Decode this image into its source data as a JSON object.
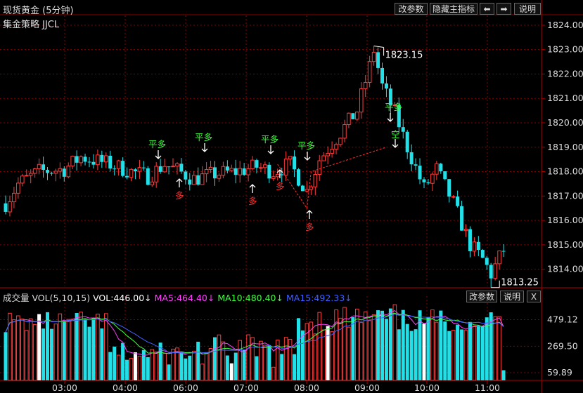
{
  "header": {
    "title": "现货黄金 (5分钟)",
    "subtitle": "集金策略 JJCL",
    "buttons": {
      "params": "改参数",
      "hide": "隐藏主指标",
      "left": "⬅",
      "right": "➡",
      "help": "说明"
    }
  },
  "volume_panel": {
    "label": "成交量 VOL(5,10,15)",
    "vol": "VOL:446.00↓",
    "ma5": "MA5:464.40↓",
    "ma10": "MA10:480.40↓",
    "ma15": "MA15:492.33↓",
    "buttons": {
      "params": "改参数",
      "help": "说明",
      "close": "X"
    }
  },
  "colors": {
    "up": "#ff3b3b",
    "down": "#22e0e8",
    "white": "#ffffff",
    "ma5": "#ff40ff",
    "ma10": "#40ff40",
    "ma15": "#4060ff",
    "grid": "#8a0000",
    "signal_green": "#3cff3c",
    "signal_red": "#ff3030"
  },
  "chart_data": {
    "type": "candlestick",
    "price_ticks": [
      "1824.00",
      "1823.00",
      "1822.00",
      "1821.00",
      "1820.00",
      "1819.00",
      "1818.00",
      "1817.00",
      "1816.00",
      "1815.00",
      "1814.00"
    ],
    "price_range": [
      1813.3,
      1824.4
    ],
    "volume_ticks": [
      "479.12",
      "269.50",
      "59.89"
    ],
    "volume_range": [
      0,
      620
    ],
    "time_labels": [
      "03:00",
      "04:00",
      "06:00",
      "07:00",
      "08:00",
      "09:00",
      "10:00",
      "11:00"
    ],
    "high_label": "1823.15",
    "low_label": "1813.25",
    "signals_sell": [
      "平多",
      "平多",
      "平多",
      "平多",
      "平多"
    ],
    "signal_short": "空",
    "signals_buy": [
      "多",
      "多",
      "多",
      "多"
    ]
  }
}
